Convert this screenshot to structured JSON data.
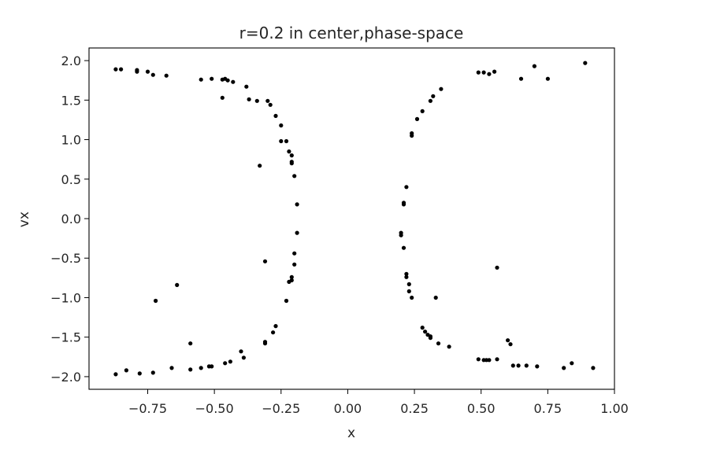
{
  "chart_data": {
    "type": "scatter",
    "title": "r=0.2 in center,phase-space",
    "xlabel": "x",
    "ylabel": "vx",
    "xlim": [
      -0.97,
      1.0
    ],
    "ylim": [
      -2.16,
      2.16
    ],
    "xticks": [
      -0.75,
      -0.5,
      -0.25,
      0.0,
      0.25,
      0.5,
      0.75,
      1.0
    ],
    "xtick_labels": [
      "−0.75",
      "−0.50",
      "−0.25",
      "0.00",
      "0.25",
      "0.50",
      "0.75",
      "1.00"
    ],
    "yticks": [
      -2.0,
      -1.5,
      -1.0,
      -0.5,
      0.0,
      0.5,
      1.0,
      1.5,
      2.0
    ],
    "ytick_labels": [
      "−2.0",
      "−1.5",
      "−1.0",
      "−0.5",
      "0.0",
      "0.5",
      "1.0",
      "1.5",
      "2.0"
    ],
    "grid": false,
    "marker_color": "#000000",
    "points": [
      [
        -0.87,
        1.89
      ],
      [
        -0.85,
        1.89
      ],
      [
        -0.79,
        1.88
      ],
      [
        -0.79,
        1.86
      ],
      [
        -0.75,
        1.86
      ],
      [
        -0.73,
        1.82
      ],
      [
        -0.68,
        1.81
      ],
      [
        -0.55,
        1.76
      ],
      [
        -0.51,
        1.77
      ],
      [
        -0.47,
        1.76
      ],
      [
        -0.46,
        1.77
      ],
      [
        -0.45,
        1.75
      ],
      [
        -0.43,
        1.73
      ],
      [
        -0.47,
        1.53
      ],
      [
        -0.38,
        1.67
      ],
      [
        -0.37,
        1.51
      ],
      [
        -0.34,
        1.49
      ],
      [
        -0.3,
        1.49
      ],
      [
        -0.29,
        1.44
      ],
      [
        -0.27,
        1.3
      ],
      [
        -0.25,
        1.18
      ],
      [
        -0.23,
        0.98
      ],
      [
        -0.25,
        0.98
      ],
      [
        -0.22,
        0.85
      ],
      [
        -0.21,
        0.8
      ],
      [
        -0.21,
        0.72
      ],
      [
        -0.21,
        0.7
      ],
      [
        -0.2,
        0.54
      ],
      [
        -0.33,
        0.67
      ],
      [
        -0.19,
        0.18
      ],
      [
        -0.19,
        -0.18
      ],
      [
        -0.2,
        -0.44
      ],
      [
        -0.2,
        -0.58
      ],
      [
        -0.31,
        -0.54
      ],
      [
        -0.21,
        -0.74
      ],
      [
        -0.21,
        -0.78
      ],
      [
        -0.22,
        -0.8
      ],
      [
        -0.64,
        -0.84
      ],
      [
        -0.72,
        -1.04
      ],
      [
        -0.23,
        -1.04
      ],
      [
        -0.27,
        -1.36
      ],
      [
        -0.28,
        -1.44
      ],
      [
        -0.31,
        -1.56
      ],
      [
        -0.31,
        -1.58
      ],
      [
        -0.59,
        -1.58
      ],
      [
        -0.4,
        -1.68
      ],
      [
        -0.39,
        -1.76
      ],
      [
        -0.44,
        -1.81
      ],
      [
        -0.46,
        -1.83
      ],
      [
        -0.52,
        -1.87
      ],
      [
        -0.51,
        -1.87
      ],
      [
        -0.55,
        -1.89
      ],
      [
        -0.59,
        -1.91
      ],
      [
        -0.66,
        -1.89
      ],
      [
        -0.73,
        -1.95
      ],
      [
        -0.78,
        -1.96
      ],
      [
        -0.83,
        -1.92
      ],
      [
        -0.87,
        -1.97
      ],
      [
        0.89,
        1.97
      ],
      [
        0.7,
        1.93
      ],
      [
        0.75,
        1.77
      ],
      [
        0.65,
        1.77
      ],
      [
        0.55,
        1.86
      ],
      [
        0.53,
        1.83
      ],
      [
        0.51,
        1.85
      ],
      [
        0.49,
        1.85
      ],
      [
        0.35,
        1.64
      ],
      [
        0.32,
        1.55
      ],
      [
        0.31,
        1.49
      ],
      [
        0.28,
        1.36
      ],
      [
        0.26,
        1.26
      ],
      [
        0.24,
        1.08
      ],
      [
        0.24,
        1.05
      ],
      [
        0.22,
        0.4
      ],
      [
        0.21,
        0.2
      ],
      [
        0.21,
        0.18
      ],
      [
        0.2,
        -0.18
      ],
      [
        0.2,
        -0.21
      ],
      [
        0.21,
        -0.37
      ],
      [
        0.22,
        -0.7
      ],
      [
        0.22,
        -0.74
      ],
      [
        0.23,
        -0.83
      ],
      [
        0.23,
        -0.92
      ],
      [
        0.24,
        -1.0
      ],
      [
        0.33,
        -1.0
      ],
      [
        0.56,
        -0.62
      ],
      [
        0.28,
        -1.38
      ],
      [
        0.29,
        -1.43
      ],
      [
        0.3,
        -1.47
      ],
      [
        0.31,
        -1.49
      ],
      [
        0.31,
        -1.51
      ],
      [
        0.34,
        -1.58
      ],
      [
        0.38,
        -1.62
      ],
      [
        0.6,
        -1.54
      ],
      [
        0.61,
        -1.59
      ],
      [
        0.49,
        -1.78
      ],
      [
        0.51,
        -1.79
      ],
      [
        0.52,
        -1.79
      ],
      [
        0.53,
        -1.79
      ],
      [
        0.56,
        -1.78
      ],
      [
        0.62,
        -1.86
      ],
      [
        0.64,
        -1.86
      ],
      [
        0.67,
        -1.86
      ],
      [
        0.71,
        -1.87
      ],
      [
        0.81,
        -1.89
      ],
      [
        0.84,
        -1.83
      ],
      [
        0.92,
        -1.89
      ]
    ]
  }
}
